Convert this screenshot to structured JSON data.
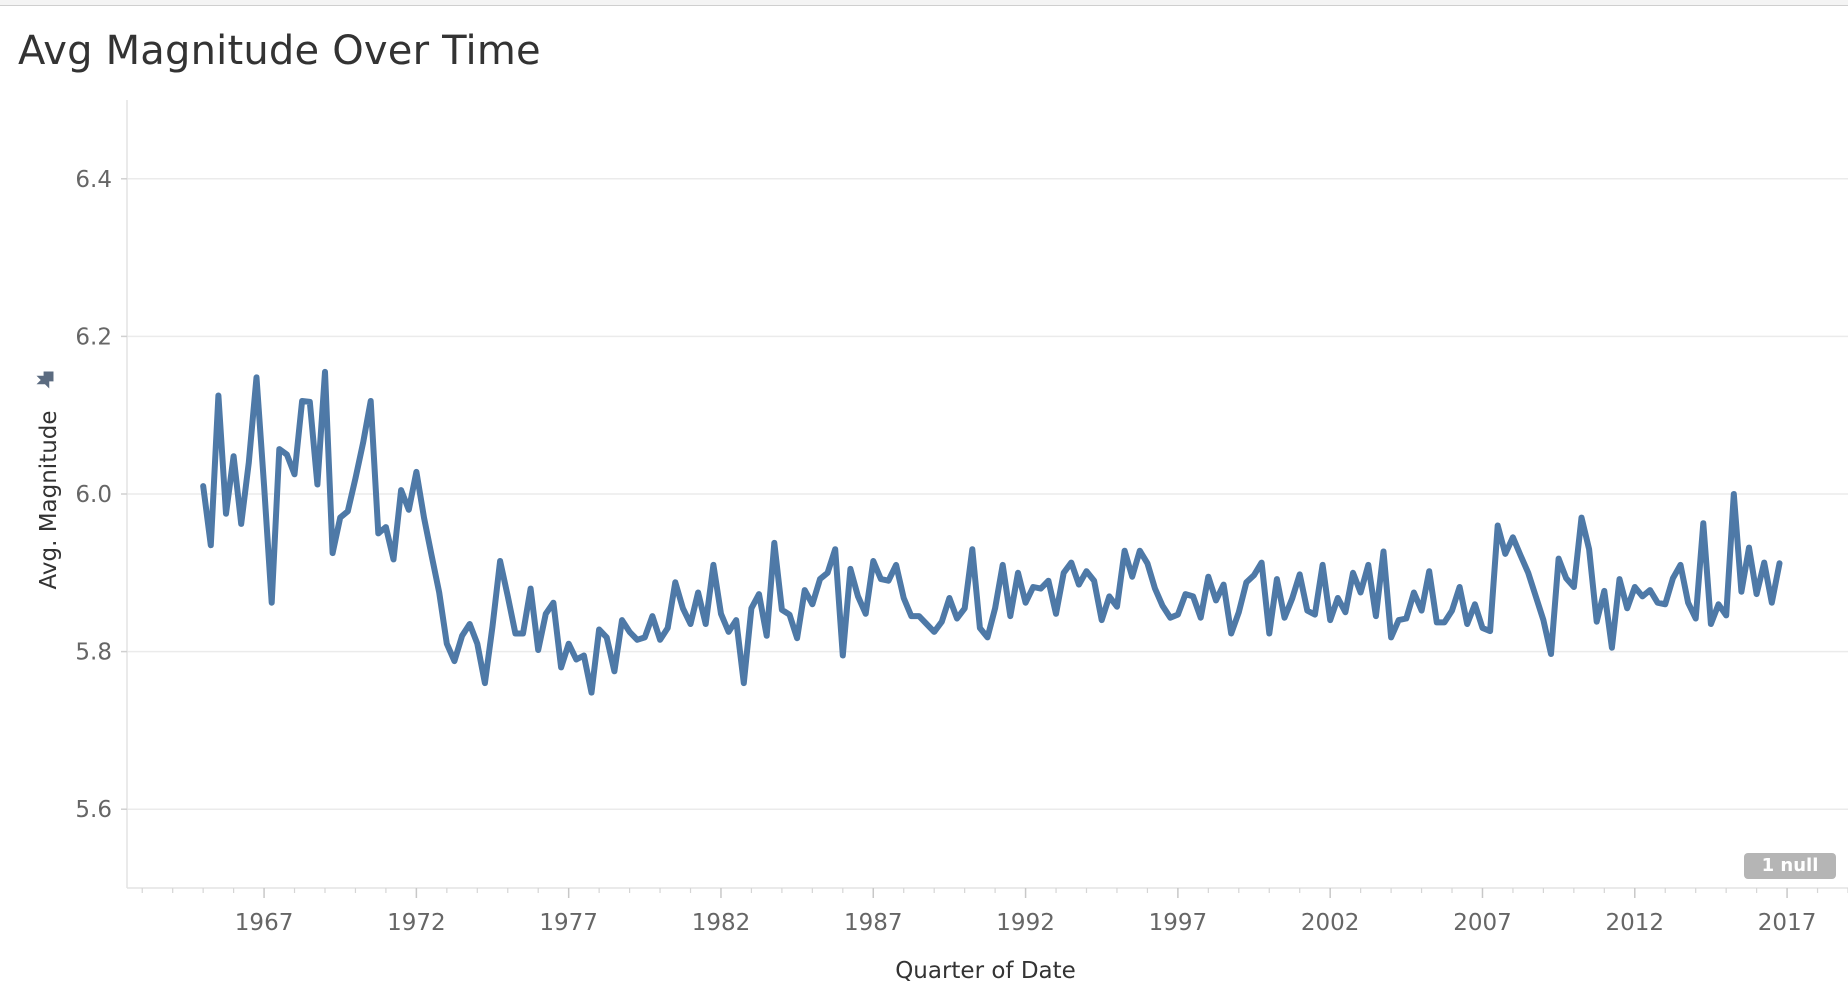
{
  "chart_data": {
    "type": "line",
    "title": "Avg Magnitude Over Time",
    "xlabel": "Quarter of Date",
    "ylabel": "Avg. Magnitude",
    "x_ticks": [
      "1967",
      "1972",
      "1977",
      "1982",
      "1987",
      "1992",
      "1997",
      "2002",
      "2007",
      "2012",
      "2017"
    ],
    "y_ticks": [
      "5.6",
      "5.8",
      "6.0",
      "6.2",
      "6.4"
    ],
    "xlim": [
      1962.5,
      2019.0
    ],
    "ylim": [
      5.5,
      6.5
    ],
    "grid": true,
    "null_badge": "1 null",
    "line_color": "#4e79a7",
    "series": [
      {
        "x": [
          1965.0,
          1965.25,
          1965.5,
          1965.75,
          1966.0,
          1966.25,
          1966.5,
          1966.75,
          1967.0,
          1967.25,
          1967.5,
          1967.75,
          1968.0,
          1968.25,
          1968.5,
          1968.75,
          1969.0,
          1969.25,
          1969.5,
          1969.75,
          1970.0,
          1970.25,
          1970.5,
          1970.75,
          1971.0,
          1971.25,
          1971.5,
          1971.75,
          1972.0,
          1972.25,
          1972.5,
          1972.75,
          1973.0,
          1973.25,
          1973.5,
          1973.75,
          1974.0,
          1974.25,
          1974.5,
          1974.75,
          1975.0,
          1975.25,
          1975.5,
          1975.75,
          1976.0,
          1976.25,
          1976.5,
          1976.75,
          1977.0,
          1977.25,
          1977.5,
          1977.75,
          1978.0,
          1978.25,
          1978.5,
          1978.75,
          1979.0,
          1979.25,
          1979.5,
          1979.75,
          1980.0,
          1980.25,
          1980.5,
          1980.75,
          1981.0,
          1981.25,
          1981.5,
          1981.75,
          1982.0,
          1982.25,
          1982.5,
          1982.75,
          1983.0,
          1983.25,
          1983.5,
          1983.75,
          1984.0,
          1984.25,
          1984.5,
          1984.75,
          1985.0,
          1985.25,
          1985.5,
          1985.75,
          1986.0,
          1986.25,
          1986.5,
          1986.75,
          1987.0,
          1987.25,
          1987.5,
          1987.75,
          1988.0,
          1988.25,
          1988.5,
          1988.75,
          1989.0,
          1989.25,
          1989.5,
          1989.75,
          1990.0,
          1990.25,
          1990.5,
          1990.75,
          1991.0,
          1991.25,
          1991.5,
          1991.75,
          1992.0,
          1992.25,
          1992.5,
          1992.75,
          1993.0,
          1993.25,
          1993.5,
          1993.75,
          1994.0,
          1994.25,
          1994.5,
          1994.75,
          1995.0,
          1995.25,
          1995.5,
          1995.75,
          1996.0,
          1996.25,
          1996.5,
          1996.75,
          1997.0,
          1997.25,
          1997.5,
          1997.75,
          1998.0,
          1998.25,
          1998.5,
          1998.75,
          1999.0,
          1999.25,
          1999.5,
          1999.75,
          2000.0,
          2000.25,
          2000.5,
          2000.75,
          2001.0,
          2001.25,
          2001.5,
          2001.75,
          2002.0,
          2002.25,
          2002.5,
          2002.75,
          2003.0,
          2003.25,
          2003.5,
          2003.75,
          2004.0,
          2004.25,
          2004.5,
          2004.75,
          2005.0,
          2005.25,
          2005.5,
          2005.75,
          2006.0,
          2006.25,
          2006.5,
          2006.75,
          2007.0,
          2007.25,
          2007.5,
          2007.75,
          2008.0,
          2008.25,
          2008.5,
          2008.75,
          2009.0,
          2009.25,
          2009.5,
          2009.75,
          2010.0,
          2010.25,
          2010.5,
          2010.75,
          2011.0,
          2011.25,
          2011.5,
          2011.75,
          2012.0,
          2012.25,
          2012.5,
          2012.75,
          2013.0,
          2013.25,
          2013.5,
          2013.75,
          2014.0,
          2014.25,
          2014.5,
          2014.75,
          2015.0,
          2015.25,
          2015.5,
          2015.75,
          2016.0,
          2016.25,
          2016.5,
          2016.75
        ],
        "y": [
          6.01,
          5.935,
          6.125,
          5.975,
          6.048,
          5.962,
          6.04,
          6.148,
          6.01,
          5.862,
          6.057,
          6.05,
          6.025,
          6.118,
          6.117,
          6.012,
          6.155,
          5.925,
          5.97,
          5.978,
          6.02,
          6.065,
          6.118,
          5.95,
          5.958,
          5.917,
          6.005,
          5.98,
          6.028,
          5.97,
          5.922,
          5.875,
          5.81,
          5.788,
          5.82,
          5.835,
          5.81,
          5.76,
          5.832,
          5.915,
          5.87,
          5.823,
          5.823,
          5.88,
          5.802,
          5.848,
          5.862,
          5.78,
          5.81,
          5.79,
          5.795,
          5.748,
          5.828,
          5.818,
          5.775,
          5.84,
          5.825,
          5.815,
          5.818,
          5.845,
          5.815,
          5.83,
          5.888,
          5.855,
          5.835,
          5.875,
          5.835,
          5.91,
          5.848,
          5.825,
          5.84,
          5.76,
          5.855,
          5.873,
          5.82,
          5.938,
          5.853,
          5.847,
          5.817,
          5.878,
          5.86,
          5.892,
          5.9,
          5.93,
          5.795,
          5.905,
          5.87,
          5.848,
          5.915,
          5.892,
          5.89,
          5.91,
          5.868,
          5.845,
          5.845,
          5.835,
          5.825,
          5.838,
          5.868,
          5.842,
          5.855,
          5.93,
          5.83,
          5.818,
          5.855,
          5.91,
          5.845,
          5.9,
          5.862,
          5.882,
          5.88,
          5.89,
          5.848,
          5.9,
          5.913,
          5.885,
          5.902,
          5.89,
          5.84,
          5.87,
          5.857,
          5.928,
          5.895,
          5.928,
          5.912,
          5.88,
          5.858,
          5.843,
          5.847,
          5.873,
          5.87,
          5.843,
          5.895,
          5.865,
          5.885,
          5.823,
          5.85,
          5.888,
          5.897,
          5.913,
          5.823,
          5.892,
          5.843,
          5.867,
          5.898,
          5.852,
          5.847,
          5.91,
          5.84,
          5.868,
          5.85,
          5.9,
          5.875,
          5.91,
          5.845,
          5.927,
          5.818,
          5.84,
          5.842,
          5.875,
          5.852,
          5.902,
          5.837,
          5.837,
          5.852,
          5.882,
          5.835,
          5.86,
          5.83,
          5.826,
          5.96,
          5.924,
          5.945,
          5.922,
          5.9,
          5.87,
          5.84,
          5.797,
          5.918,
          5.893,
          5.882,
          5.97,
          5.93,
          5.838,
          5.877,
          5.805,
          5.892,
          5.855,
          5.882,
          5.87,
          5.878,
          5.862,
          5.86,
          5.893,
          5.91,
          5.862,
          5.842,
          5.963,
          5.835,
          5.86,
          5.846,
          6.0,
          5.876,
          5.932,
          5.873,
          5.913,
          5.862,
          5.912
        ]
      }
    ]
  }
}
